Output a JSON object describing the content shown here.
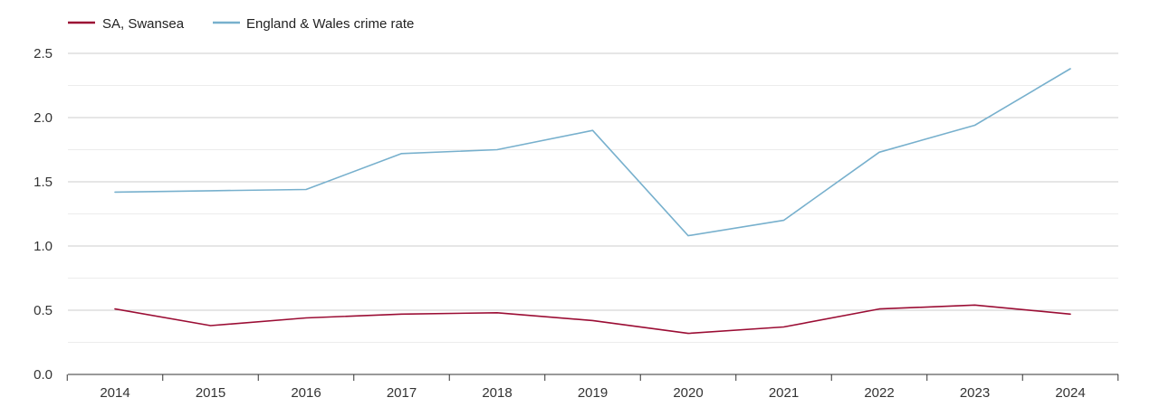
{
  "chart_data": {
    "type": "line",
    "title": "",
    "xlabel": "",
    "ylabel": "",
    "x": [
      "2014",
      "2015",
      "2016",
      "2017",
      "2018",
      "2019",
      "2020",
      "2021",
      "2022",
      "2023",
      "2024"
    ],
    "ylim": [
      0,
      2.5
    ],
    "yticks": [
      "0.0",
      "0.5",
      "1.0",
      "1.5",
      "2.0",
      "2.5"
    ],
    "grid": true,
    "minor_grid": true,
    "legend_position": "top-left",
    "series": [
      {
        "name": "SA, Swansea",
        "color": "#9b0d34",
        "values": [
          0.51,
          0.38,
          0.44,
          0.47,
          0.48,
          0.42,
          0.32,
          0.37,
          0.51,
          0.54,
          0.47
        ]
      },
      {
        "name": "England & Wales crime rate",
        "color": "#77b0cd",
        "values": [
          1.42,
          1.43,
          1.44,
          1.72,
          1.75,
          1.9,
          1.08,
          1.2,
          1.73,
          1.94,
          2.38
        ]
      }
    ]
  }
}
